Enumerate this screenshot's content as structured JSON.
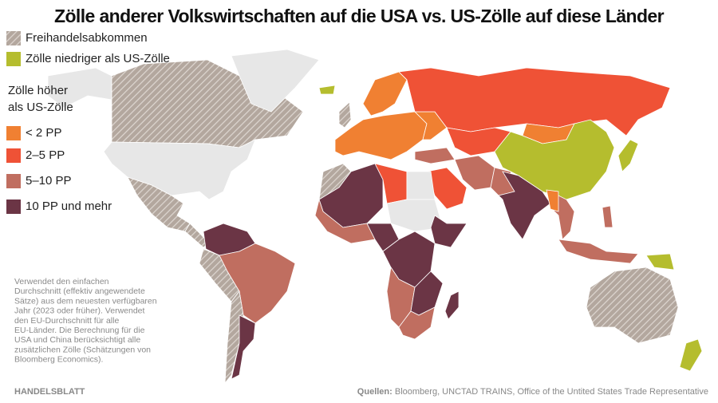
{
  "title": "Zölle anderer Volkswirtschaften auf die USA vs. US-Zölle auf diese Länder",
  "legend": [
    {
      "label": "Freihandelsabkommen",
      "color": "#b3a79e",
      "hatched": true
    },
    {
      "label": "Zölle niedriger als US-Zölle",
      "color": "#b5bd2e"
    },
    {
      "label": "< 2 PP",
      "color": "#f08032"
    },
    {
      "label": "2–5 PP",
      "color": "#ef5236"
    },
    {
      "label": "5–10 PP",
      "color": "#c06e60"
    },
    {
      "label": "10 PP und mehr",
      "color": "#6b3545"
    }
  ],
  "legend_heading": [
    "Zölle höher",
    "als US-Zölle"
  ],
  "note": [
    "Verwendet den einfachen",
    "Durchschnitt (effektiv angewendete",
    "Sätze) aus dem neuesten verfügbaren",
    "Jahr (2023 oder früher). Verwendet",
    "den EU-Durchschnitt für alle",
    "EU-Länder. Die Berechnung für die",
    "USA und China berücksichtigt alle",
    "zusätzlichen Zölle (Schätzungen von",
    "Bloomberg Economics)."
  ],
  "brand": "HANDELSBLATT",
  "source": {
    "label": "Quellen:",
    "text": "Bloomberg, UNCTAD TRAINS, Office of the Untited States Trade Representative"
  }
}
